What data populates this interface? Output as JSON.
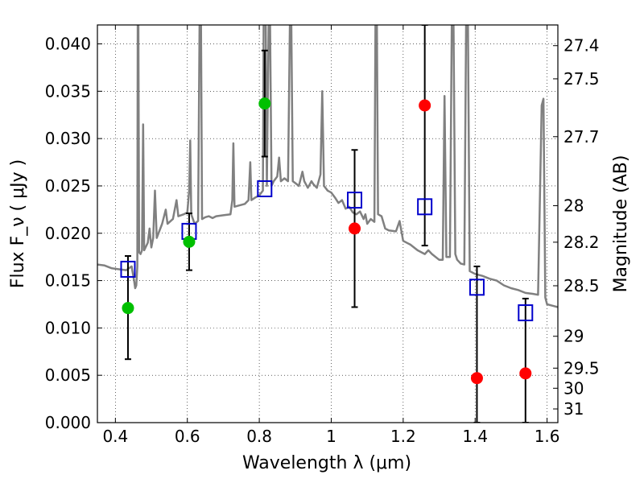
{
  "chart_data": {
    "type": "scatter",
    "xlabel": "Wavelength  λ (μm)",
    "ylabel": "Flux  F_ν  ( μJy )",
    "ylabel_right": "Magnitude (AB)",
    "xlim": [
      0.35,
      1.63
    ],
    "ylim": [
      0.0,
      0.042
    ],
    "x_ticks": [
      0.4,
      0.6,
      0.8,
      1.0,
      1.2,
      1.4,
      1.6
    ],
    "x_tick_labels": [
      "0.4",
      "0.6",
      "0.8",
      "1",
      "1.2",
      "1.4",
      "1.6"
    ],
    "y_ticks": [
      0.0,
      0.005,
      0.01,
      0.015,
      0.02,
      0.025,
      0.03,
      0.035,
      0.04
    ],
    "y_tick_labels": [
      "0.000",
      "0.005",
      "0.010",
      "0.015",
      "0.020",
      "0.025",
      "0.030",
      "0.035",
      "0.040"
    ],
    "right_ticks": [
      {
        "label": "27.4",
        "mag": 27.4
      },
      {
        "label": "27.5",
        "mag": 27.5
      },
      {
        "label": "27.7",
        "mag": 27.7
      },
      {
        "label": "28",
        "mag": 28.0
      },
      {
        "label": "28.2",
        "mag": 28.2
      },
      {
        "label": "28.5",
        "mag": 28.5
      },
      {
        "label": "29",
        "mag": 29.0
      },
      {
        "label": "29.5",
        "mag": 29.5
      },
      {
        "label": "30",
        "mag": 30.0
      },
      {
        "label": "31",
        "mag": 31.0
      }
    ],
    "grid": true,
    "colors": {
      "model": "#808080",
      "green": "#00c000",
      "red": "#ff0000",
      "square": "#0000cc",
      "errorbar": "#000000"
    },
    "model_spectrum": [
      [
        0.35,
        0.0167
      ],
      [
        0.37,
        0.0166
      ],
      [
        0.39,
        0.0163
      ],
      [
        0.41,
        0.0162
      ],
      [
        0.43,
        0.0161
      ],
      [
        0.445,
        0.0165
      ],
      [
        0.452,
        0.015
      ],
      [
        0.455,
        0.0142
      ],
      [
        0.458,
        0.0145
      ],
      [
        0.461,
        0.0165
      ],
      [
        0.462,
        0.042
      ],
      [
        0.464,
        0.042
      ],
      [
        0.466,
        0.018
      ],
      [
        0.47,
        0.0178
      ],
      [
        0.474,
        0.0182
      ],
      [
        0.477,
        0.0315
      ],
      [
        0.48,
        0.0182
      ],
      [
        0.49,
        0.019
      ],
      [
        0.495,
        0.0205
      ],
      [
        0.5,
        0.0185
      ],
      [
        0.505,
        0.0195
      ],
      [
        0.51,
        0.0245
      ],
      [
        0.515,
        0.0195
      ],
      [
        0.53,
        0.021
      ],
      [
        0.54,
        0.0225
      ],
      [
        0.545,
        0.021
      ],
      [
        0.56,
        0.0215
      ],
      [
        0.57,
        0.0235
      ],
      [
        0.575,
        0.0218
      ],
      [
        0.59,
        0.022
      ],
      [
        0.6,
        0.0222
      ],
      [
        0.605,
        0.0245
      ],
      [
        0.608,
        0.0298
      ],
      [
        0.611,
        0.022
      ],
      [
        0.62,
        0.021
      ],
      [
        0.63,
        0.0213
      ],
      [
        0.634,
        0.042
      ],
      [
        0.638,
        0.042
      ],
      [
        0.641,
        0.0215
      ],
      [
        0.65,
        0.0217
      ],
      [
        0.66,
        0.0218
      ],
      [
        0.67,
        0.0216
      ],
      [
        0.68,
        0.0218
      ],
      [
        0.7,
        0.0219
      ],
      [
        0.72,
        0.022
      ],
      [
        0.725,
        0.0235
      ],
      [
        0.728,
        0.0295
      ],
      [
        0.731,
        0.0228
      ],
      [
        0.74,
        0.0229
      ],
      [
        0.76,
        0.0231
      ],
      [
        0.77,
        0.0235
      ],
      [
        0.775,
        0.0275
      ],
      [
        0.778,
        0.0235
      ],
      [
        0.79,
        0.0238
      ],
      [
        0.8,
        0.024
      ],
      [
        0.81,
        0.0245
      ],
      [
        0.812,
        0.042
      ],
      [
        0.818,
        0.042
      ],
      [
        0.821,
        0.025
      ],
      [
        0.826,
        0.042
      ],
      [
        0.83,
        0.042
      ],
      [
        0.834,
        0.025
      ],
      [
        0.84,
        0.0255
      ],
      [
        0.85,
        0.026
      ],
      [
        0.855,
        0.028
      ],
      [
        0.86,
        0.0255
      ],
      [
        0.87,
        0.0258
      ],
      [
        0.88,
        0.0255
      ],
      [
        0.885,
        0.042
      ],
      [
        0.889,
        0.042
      ],
      [
        0.893,
        0.0255
      ],
      [
        0.9,
        0.0253
      ],
      [
        0.91,
        0.025
      ],
      [
        0.92,
        0.0265
      ],
      [
        0.925,
        0.0255
      ],
      [
        0.935,
        0.0248
      ],
      [
        0.945,
        0.0255
      ],
      [
        0.95,
        0.0252
      ],
      [
        0.96,
        0.0248
      ],
      [
        0.97,
        0.0262
      ],
      [
        0.975,
        0.035
      ],
      [
        0.98,
        0.025
      ],
      [
        0.99,
        0.0245
      ],
      [
        1.0,
        0.0243
      ],
      [
        1.01,
        0.0238
      ],
      [
        1.02,
        0.0232
      ],
      [
        1.03,
        0.0235
      ],
      [
        1.04,
        0.0226
      ],
      [
        1.05,
        0.0228
      ],
      [
        1.06,
        0.0222
      ],
      [
        1.07,
        0.022
      ],
      [
        1.08,
        0.0223
      ],
      [
        1.09,
        0.0215
      ],
      [
        1.095,
        0.022
      ],
      [
        1.1,
        0.021
      ],
      [
        1.11,
        0.0215
      ],
      [
        1.12,
        0.0212
      ],
      [
        1.123,
        0.042
      ],
      [
        1.127,
        0.042
      ],
      [
        1.13,
        0.022
      ],
      [
        1.14,
        0.0218
      ],
      [
        1.15,
        0.0205
      ],
      [
        1.16,
        0.0203
      ],
      [
        1.18,
        0.0202
      ],
      [
        1.19,
        0.0213
      ],
      [
        1.2,
        0.0192
      ],
      [
        1.22,
        0.0188
      ],
      [
        1.24,
        0.0182
      ],
      [
        1.26,
        0.0178
      ],
      [
        1.27,
        0.0182
      ],
      [
        1.28,
        0.0178
      ],
      [
        1.3,
        0.0172
      ],
      [
        1.31,
        0.0172
      ],
      [
        1.315,
        0.0345
      ],
      [
        1.32,
        0.0175
      ],
      [
        1.33,
        0.0175
      ],
      [
        1.335,
        0.042
      ],
      [
        1.34,
        0.042
      ],
      [
        1.345,
        0.0178
      ],
      [
        1.35,
        0.0172
      ],
      [
        1.36,
        0.0168
      ],
      [
        1.37,
        0.0167
      ],
      [
        1.375,
        0.042
      ],
      [
        1.38,
        0.042
      ],
      [
        1.385,
        0.016
      ],
      [
        1.4,
        0.0157
      ],
      [
        1.42,
        0.0155
      ],
      [
        1.44,
        0.0152
      ],
      [
        1.46,
        0.015
      ],
      [
        1.48,
        0.0145
      ],
      [
        1.5,
        0.0142
      ],
      [
        1.52,
        0.014
      ],
      [
        1.54,
        0.0137
      ],
      [
        1.56,
        0.0136
      ],
      [
        1.575,
        0.0135
      ],
      [
        1.585,
        0.0335
      ],
      [
        1.59,
        0.0342
      ],
      [
        1.595,
        0.0132
      ],
      [
        1.6,
        0.0125
      ],
      [
        1.61,
        0.0124
      ],
      [
        1.63,
        0.0122
      ]
    ],
    "points": [
      {
        "x": 0.435,
        "y": 0.0121,
        "yerr": [
          0.0067,
          0.0176
        ],
        "color": "green"
      },
      {
        "x": 0.605,
        "y": 0.0191,
        "yerr": [
          0.0161,
          0.0221
        ],
        "color": "green"
      },
      {
        "x": 0.815,
        "y": 0.0337,
        "yerr": [
          0.0281,
          0.0393
        ],
        "color": "green"
      },
      {
        "x": 1.065,
        "y": 0.0205,
        "yerr": [
          0.0122,
          0.0288
        ],
        "color": "red"
      },
      {
        "x": 1.26,
        "y": 0.0335,
        "yerr": [
          0.0187,
          0.042
        ],
        "color": "red"
      },
      {
        "x": 1.405,
        "y": 0.0047,
        "yerr": [
          0.0,
          0.0165
        ],
        "color": "red"
      },
      {
        "x": 1.54,
        "y": 0.0052,
        "yerr": [
          0.0,
          0.0131
        ],
        "color": "red"
      }
    ],
    "model_bands": [
      {
        "x": 0.435,
        "y": 0.0162
      },
      {
        "x": 0.605,
        "y": 0.0202
      },
      {
        "x": 0.815,
        "y": 0.0247
      },
      {
        "x": 1.065,
        "y": 0.0235
      },
      {
        "x": 1.26,
        "y": 0.0228
      },
      {
        "x": 1.405,
        "y": 0.0143
      },
      {
        "x": 1.54,
        "y": 0.0116
      }
    ]
  }
}
